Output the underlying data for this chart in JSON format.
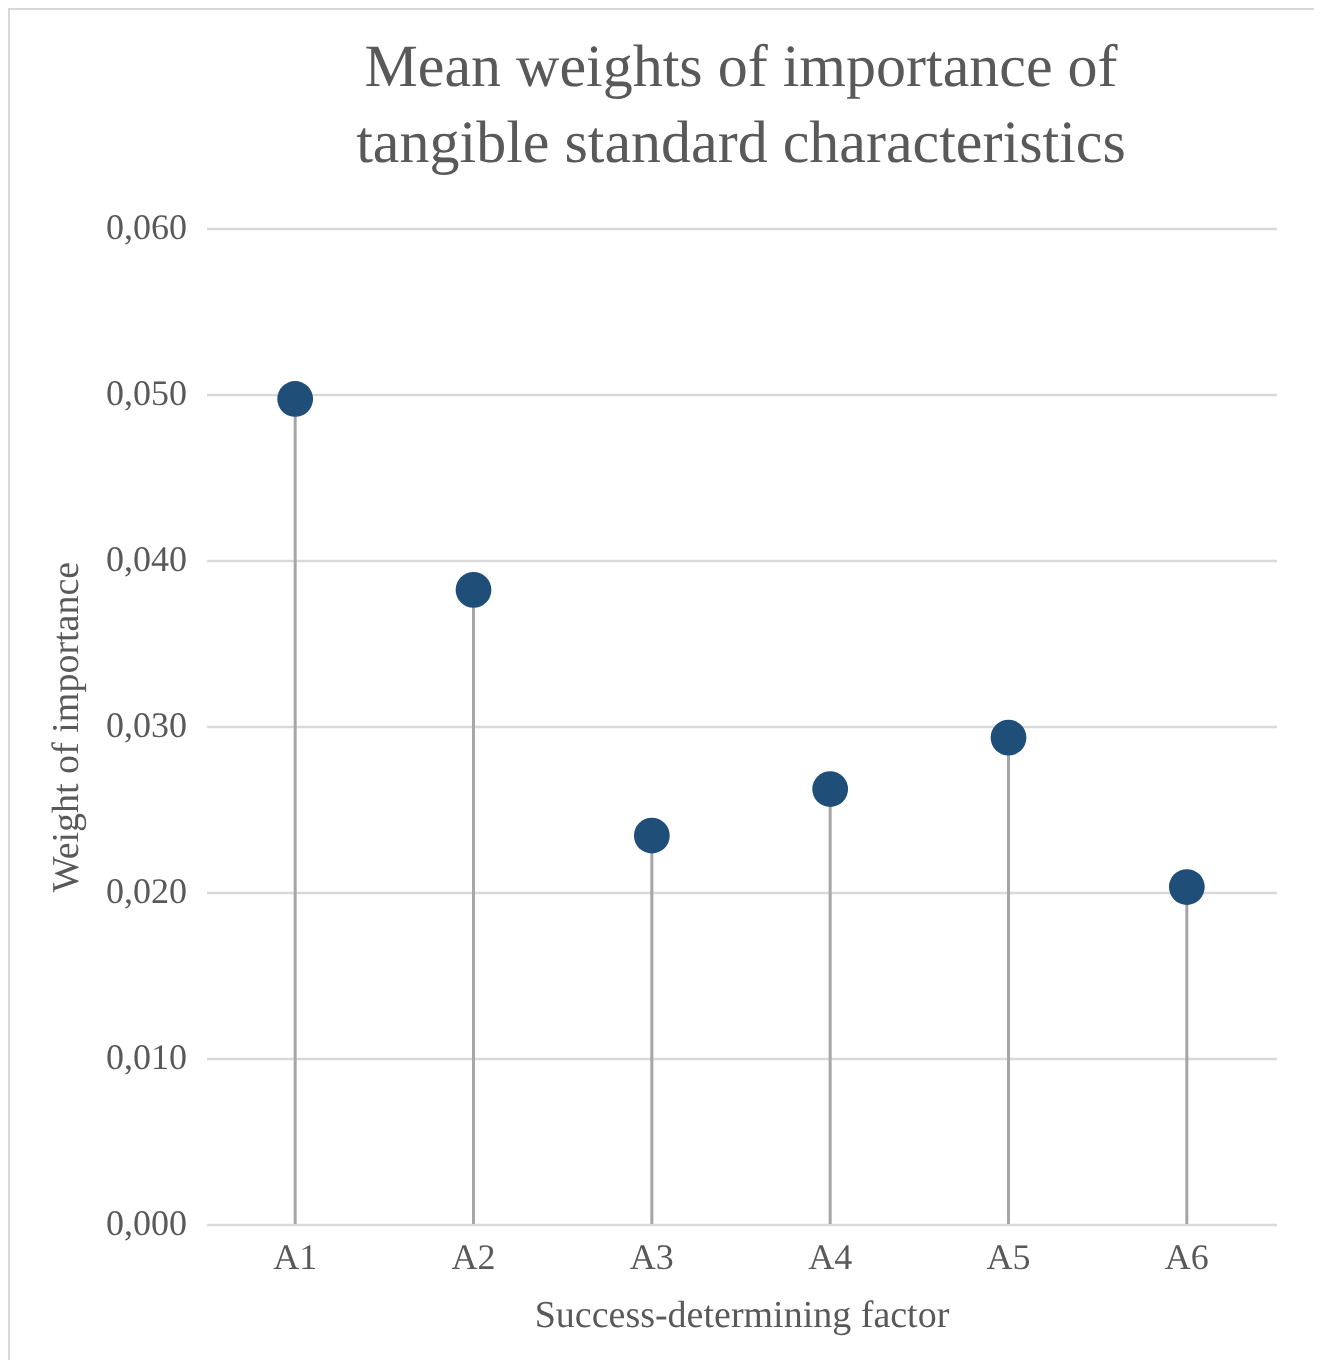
{
  "chart_data": {
    "type": "lollipop",
    "title": "Mean weights of importance of\ntangible standard characteristics",
    "xlabel": "Success-determining factor",
    "ylabel": "Weight of importance",
    "categories": [
      "A1",
      "A2",
      "A3",
      "A4",
      "A5",
      "A6"
    ],
    "series": [
      {
        "color": "#1f4e79",
        "values": [
          0.0497,
          0.0382,
          0.0234,
          0.0262,
          0.0293,
          0.0203
        ]
      }
    ],
    "ylim": [
      0,
      0.06
    ],
    "yticks": [
      {
        "value": 0,
        "label": "0,000"
      },
      {
        "value": 0.01,
        "label": "0,010"
      },
      {
        "value": 0.02,
        "label": "0,020"
      },
      {
        "value": 0.03,
        "label": "0,030"
      },
      {
        "value": 0.04,
        "label": "0,040"
      },
      {
        "value": 0.05,
        "label": "0,050"
      },
      {
        "value": 0.06,
        "label": "0,060"
      }
    ],
    "grid": "y",
    "marker": "circle"
  }
}
